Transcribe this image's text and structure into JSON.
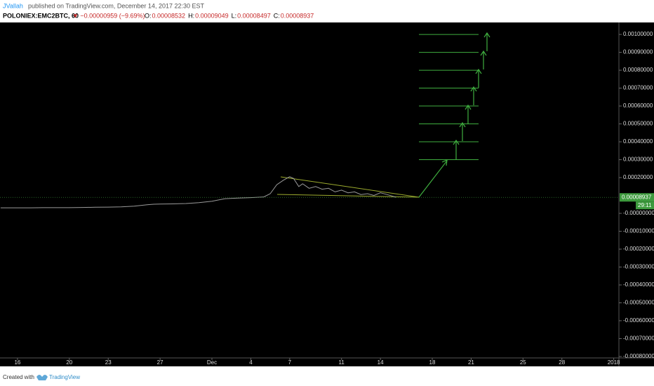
{
  "header": {
    "author": "JVallah",
    "published": "published on TradingView.com, December 14, 2017 22:30 EST",
    "symbol": "POLONIEX:EMC2BTC, 60",
    "change": "▼ −0.00000959 (−9.69%)",
    "ohlc": [
      {
        "label": "O:",
        "value": "0.00008532"
      },
      {
        "label": "H:",
        "value": "0.00009049"
      },
      {
        "label": "L:",
        "value": "0.00008497"
      },
      {
        "label": "C:",
        "value": "0.00008937"
      }
    ]
  },
  "chart_data": {
    "type": "line",
    "color": "#9a9a9a",
    "x": [
      -1.3,
      0,
      1,
      2,
      3,
      4,
      5,
      6,
      7,
      8,
      9,
      10,
      10.5,
      11,
      12,
      13,
      14,
      15,
      16,
      17,
      18,
      19,
      19.5,
      20,
      20.5,
      21,
      21.3,
      21.7,
      22,
      22.5,
      23,
      23.5,
      24,
      24.5,
      25,
      25.5,
      26,
      26.5,
      27,
      27.5,
      28,
      28.5,
      29,
      29.2
    ],
    "values": [
      3.1e-05,
      3.1e-05,
      3.1e-05,
      3.2e-05,
      3.2e-05,
      3.2e-05,
      3.3e-05,
      3.4e-05,
      3.5e-05,
      3.6e-05,
      4e-05,
      4.8e-05,
      5.1e-05,
      5.2e-05,
      5.3e-05,
      5.5e-05,
      6e-05,
      6.8e-05,
      8.2e-05,
      8.5e-05,
      8.8e-05,
      9.2e-05,
      0.00011,
      0.00016,
      0.000185,
      0.000205,
      0.000195,
      0.00015,
      0.000165,
      0.00014,
      0.00015,
      0.000135,
      0.00014,
      0.00012,
      0.00013,
      0.000115,
      0.00012,
      0.000105,
      0.00011,
      0.0001,
      0.000115,
      0.000105,
      9.5e-05,
      8.937e-05
    ],
    "xlim": [
      -1.35,
      46.4
    ],
    "xticks": [
      {
        "value": 0,
        "label": "16"
      },
      {
        "value": 4,
        "label": "20"
      },
      {
        "value": 7,
        "label": "23"
      },
      {
        "value": 11,
        "label": "27"
      },
      {
        "value": 15,
        "label": "Dec"
      },
      {
        "value": 18,
        "label": "4"
      },
      {
        "value": 21,
        "label": "7"
      },
      {
        "value": 25,
        "label": "11"
      },
      {
        "value": 28,
        "label": "14"
      },
      {
        "value": 32,
        "label": "18"
      },
      {
        "value": 35,
        "label": "21"
      },
      {
        "value": 39,
        "label": "25"
      },
      {
        "value": 42,
        "label": "28"
      },
      {
        "value": 46,
        "label": "2018"
      }
    ],
    "ylim": [
      -0.000808,
      0.001067
    ],
    "yticks": [
      {
        "value": 0.001,
        "label": "0.00100000"
      },
      {
        "value": 0.0009,
        "label": "0.00090000"
      },
      {
        "value": 0.0008,
        "label": "0.00080000"
      },
      {
        "value": 0.0007,
        "label": "0.00070000"
      },
      {
        "value": 0.0006,
        "label": "0.00060000"
      },
      {
        "value": 0.0005,
        "label": "0.00050000"
      },
      {
        "value": 0.0004,
        "label": "0.00040000"
      },
      {
        "value": 0.0003,
        "label": "0.00030000"
      },
      {
        "value": 0.0002,
        "label": "0.00020000"
      },
      {
        "value": 0,
        "label": "-0.00000000"
      },
      {
        "value": -0.0001,
        "label": "-0.00010000"
      },
      {
        "value": -0.0002,
        "label": "-0.00020000"
      },
      {
        "value": -0.0003,
        "label": "-0.00030000"
      },
      {
        "value": -0.0004,
        "label": "-0.00040000"
      },
      {
        "value": -0.0005,
        "label": "-0.00050000"
      },
      {
        "value": -0.0006,
        "label": "-0.00060000"
      },
      {
        "value": -0.0007,
        "label": "-0.00070000"
      },
      {
        "value": -0.0008,
        "label": "-0.00080000"
      }
    ],
    "last_price": 8.937e-05,
    "countdown": "29:11",
    "price_color": "#3d9a3d",
    "levels": [
      0.0003,
      0.0004,
      0.0005,
      0.0006,
      0.0007,
      0.0008,
      0.0009,
      0.001
    ],
    "level_color": "#3fae3f",
    "grid": false
  },
  "footer": {
    "created": "Created with",
    "brand": "TradingView"
  }
}
